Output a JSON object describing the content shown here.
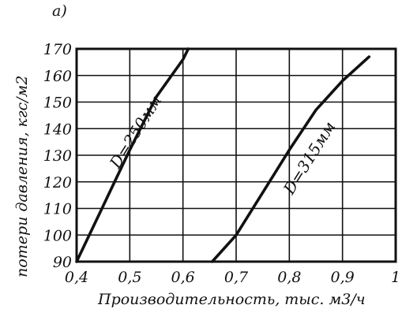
{
  "chart_data": {
    "type": "line",
    "panel_label": "а)",
    "xlabel": "Производительность, тыс. м3/ч",
    "ylabel": "потери давления, кгс/м2",
    "xlim": [
      0.4,
      1.0
    ],
    "ylim": [
      90,
      170
    ],
    "x_ticks": [
      "0,4",
      "0,5",
      "0,6",
      "0,7",
      "0,8",
      "0,9",
      "1"
    ],
    "y_ticks": [
      "90",
      "100",
      "110",
      "120",
      "130",
      "140",
      "150",
      "160",
      "170"
    ],
    "series": [
      {
        "name": "D=250мм",
        "x": [
          0.4,
          0.45,
          0.5,
          0.55,
          0.6,
          0.61
        ],
        "y": [
          90,
          111,
          132,
          152,
          166,
          170
        ]
      },
      {
        "name": "D=315мм",
        "x": [
          0.655,
          0.7,
          0.75,
          0.8,
          0.85,
          0.9,
          0.95
        ],
        "y": [
          90,
          100,
          116,
          132,
          147,
          158,
          167
        ]
      }
    ],
    "colors": {
      "ink": "#111111",
      "background": "#ffffff"
    }
  }
}
